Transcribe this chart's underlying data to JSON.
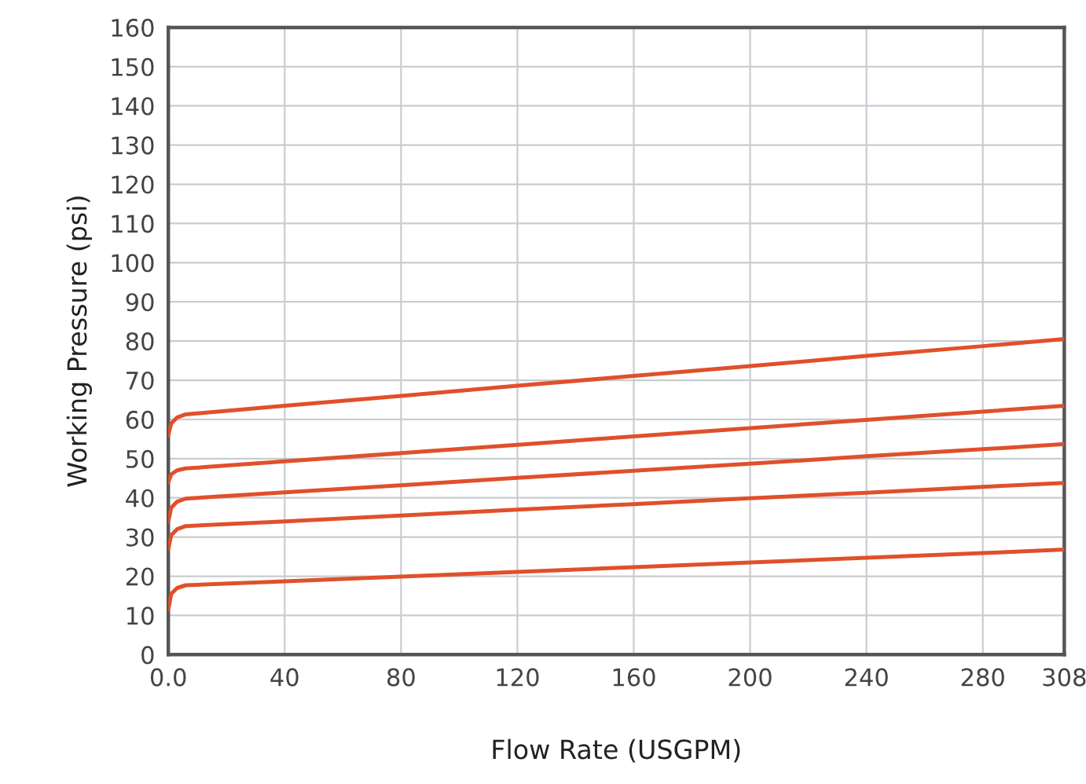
{
  "chart_data": {
    "type": "line",
    "xlabel": "Flow Rate (USGPM)",
    "ylabel": "Working Pressure (psi)",
    "x": [
      0,
      1,
      3,
      6,
      40,
      80,
      120,
      160,
      200,
      240,
      280,
      308
    ],
    "series": [
      {
        "color": "#e0502a",
        "values": [
          56,
          59,
          60.5,
          61.3,
          63.5,
          66,
          68.6,
          71.1,
          73.6,
          76.2,
          78.7,
          80.5
        ]
      },
      {
        "color": "#e0502a",
        "values": [
          44,
          46,
          47,
          47.5,
          49.3,
          51.4,
          53.5,
          55.7,
          57.8,
          59.9,
          62,
          63.5
        ]
      },
      {
        "color": "#e0502a",
        "values": [
          34,
          37.5,
          39,
          39.8,
          41.4,
          43.2,
          45.1,
          46.9,
          48.7,
          50.6,
          52.4,
          53.7
        ]
      },
      {
        "color": "#e0502a",
        "values": [
          27,
          30.5,
          32,
          32.8,
          34,
          35.5,
          37,
          38.4,
          39.9,
          41.3,
          42.8,
          43.8
        ]
      },
      {
        "color": "#e0502a",
        "values": [
          11.5,
          15.5,
          17,
          17.7,
          18.7,
          19.9,
          21.1,
          22.3,
          23.5,
          24.7,
          25.9,
          26.8
        ]
      }
    ],
    "xlim": [
      0,
      308
    ],
    "xticks": [
      {
        "value": 0,
        "label": "0.0"
      },
      40,
      80,
      120,
      160,
      200,
      240,
      280,
      308
    ],
    "ylim": [
      0,
      160
    ],
    "yticks": [
      0,
      10,
      20,
      30,
      40,
      50,
      60,
      70,
      80,
      90,
      100,
      110,
      120,
      130,
      140,
      150,
      160
    ],
    "grid": true,
    "marker": "none",
    "line_style": "solid"
  }
}
